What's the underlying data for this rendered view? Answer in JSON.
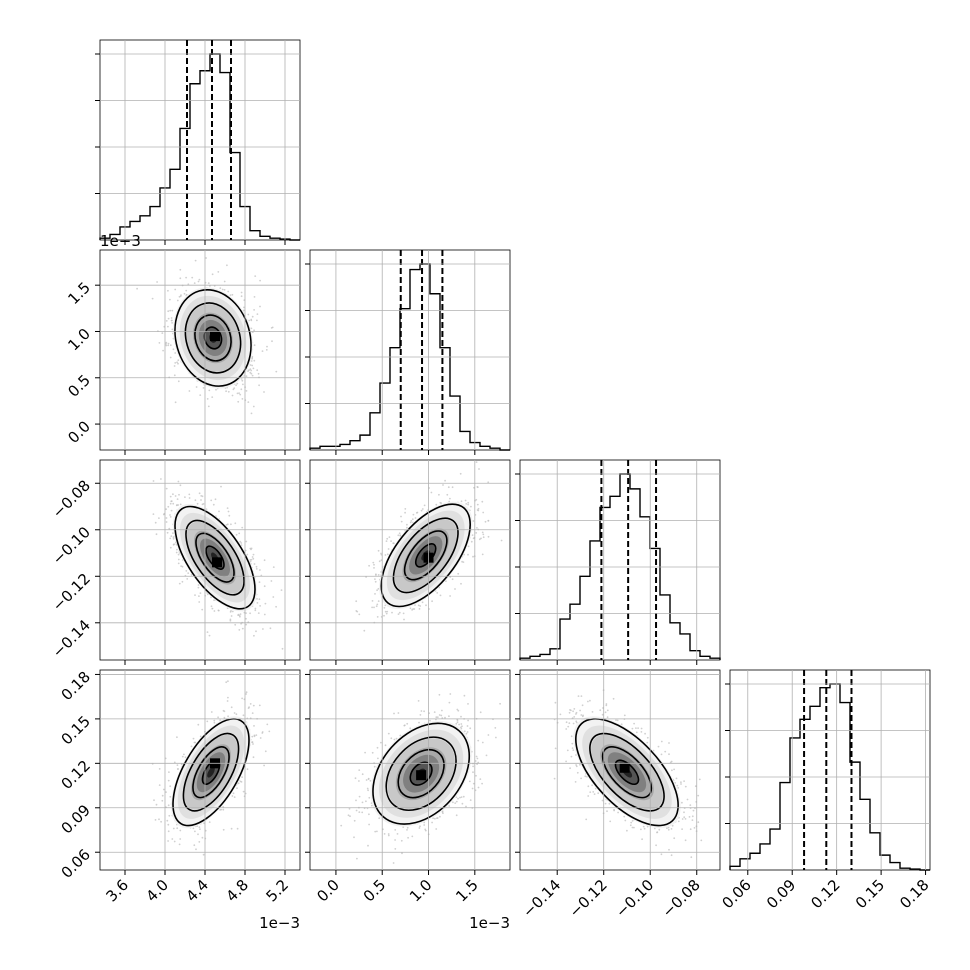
{
  "chart_data": {
    "type": "corner",
    "grid": true,
    "style": {
      "line_color": "#000000",
      "grid_color": "#b0b0b0",
      "scatter_color": "#c0c0c0",
      "background": "#ffffff"
    },
    "parameters": [
      {
        "range": [
          3.35,
          5.35
        ],
        "ticks": [
          3.6,
          4.0,
          4.4,
          4.8,
          5.2
        ],
        "tick_labels": [
          "3.6",
          "4.0",
          "4.4",
          "4.8",
          "5.2"
        ],
        "offset_label": "1e−3",
        "quantiles": [
          4.22,
          4.47,
          4.66
        ],
        "hist_max": 1.0,
        "hist": [
          0.01,
          0.03,
          0.07,
          0.1,
          0.13,
          0.18,
          0.28,
          0.38,
          0.6,
          0.84,
          0.91,
          1.0,
          0.9,
          0.47,
          0.18,
          0.05,
          0.02,
          0.01,
          0.005,
          0.0
        ]
      },
      {
        "range": [
          -0.28,
          1.88
        ],
        "ticks": [
          0.0,
          0.5,
          1.0,
          1.5
        ],
        "tick_labels": [
          "0.0",
          "0.5",
          "1.0",
          "1.5"
        ],
        "offset_label": "1e−3",
        "quantiles": [
          0.7,
          0.93,
          1.15
        ],
        "hist_max": 1.0,
        "hist": [
          0.01,
          0.02,
          0.02,
          0.03,
          0.05,
          0.08,
          0.2,
          0.36,
          0.55,
          0.76,
          0.97,
          1.0,
          0.84,
          0.55,
          0.29,
          0.1,
          0.04,
          0.02,
          0.01,
          0.0
        ]
      },
      {
        "range": [
          -0.156,
          -0.07
        ],
        "ticks": [
          -0.14,
          -0.12,
          -0.1,
          -0.08
        ],
        "tick_labels": [
          "−0.14",
          "−0.12",
          "−0.10",
          "−0.08"
        ],
        "offset_label": "",
        "quantiles": [
          -0.121,
          -0.1095,
          -0.0975
        ],
        "hist_max": 1.0,
        "hist": [
          0.01,
          0.02,
          0.03,
          0.06,
          0.22,
          0.3,
          0.45,
          0.64,
          0.82,
          0.88,
          1.0,
          0.92,
          0.77,
          0.6,
          0.35,
          0.2,
          0.14,
          0.05,
          0.02,
          0.01
        ]
      },
      {
        "range": [
          0.048,
          0.183
        ],
        "ticks": [
          0.06,
          0.09,
          0.12,
          0.15,
          0.18
        ],
        "tick_labels": [
          "0.06",
          "0.09",
          "0.12",
          "0.15",
          "0.18"
        ],
        "offset_label": "",
        "quantiles": [
          0.098,
          0.113,
          0.13
        ],
        "hist_max": 1.0,
        "hist": [
          0.02,
          0.06,
          0.09,
          0.14,
          0.22,
          0.47,
          0.71,
          0.81,
          0.88,
          0.98,
          1.0,
          0.9,
          0.58,
          0.38,
          0.2,
          0.08,
          0.04,
          0.01,
          0.005,
          0.0
        ]
      }
    ],
    "pairs": [
      {
        "row": 1,
        "col": 0,
        "mean": [
          4.48,
          0.93
        ],
        "sd": [
          0.19,
          0.26
        ],
        "rho": -0.15,
        "peak": [
          4.5,
          0.95
        ]
      },
      {
        "row": 2,
        "col": 0,
        "mean": [
          4.5,
          -0.112
        ],
        "sd": [
          0.2,
          0.011
        ],
        "rho": -0.62,
        "peak": [
          4.52,
          -0.114
        ]
      },
      {
        "row": 2,
        "col": 1,
        "mean": [
          0.97,
          -0.111
        ],
        "sd": [
          0.24,
          0.011
        ],
        "rho": 0.6,
        "peak": [
          1.0,
          -0.112
        ]
      },
      {
        "row": 3,
        "col": 0,
        "mean": [
          4.46,
          0.114
        ],
        "sd": [
          0.19,
          0.018
        ],
        "rho": 0.6,
        "peak": [
          4.5,
          0.12
        ]
      },
      {
        "row": 3,
        "col": 1,
        "mean": [
          0.92,
          0.113
        ],
        "sd": [
          0.26,
          0.017
        ],
        "rho": 0.35,
        "peak": [
          0.92,
          0.112
        ]
      },
      {
        "row": 3,
        "col": 2,
        "mean": [
          -0.11,
          0.114
        ],
        "sd": [
          0.011,
          0.018
        ],
        "rho": -0.62,
        "peak": [
          -0.111,
          0.117
        ]
      }
    ]
  }
}
